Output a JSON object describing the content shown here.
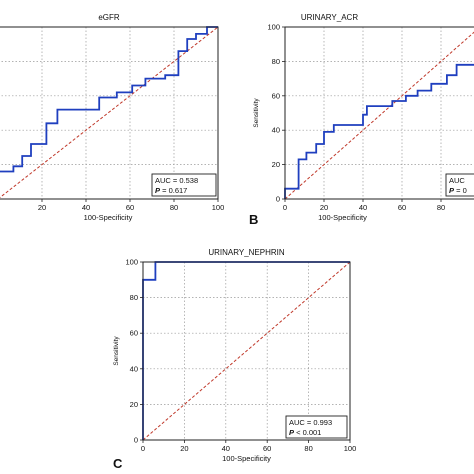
{
  "chart_data": [
    {
      "panel_letter": "",
      "type": "line",
      "title": "eGFR",
      "xlabel": "100-Specificity",
      "ylabel": "",
      "xlim": [
        0,
        100
      ],
      "ylim": [
        0,
        100
      ],
      "x_ticks": [
        "20",
        "40",
        "60",
        "80",
        "100"
      ],
      "y_ticks": [],
      "grid": true,
      "diagonal": true,
      "auc_label": "AUC = 0.538",
      "p_label": "P = 0.617",
      "roc": [
        [
          0,
          0
        ],
        [
          0,
          16
        ],
        [
          7,
          16
        ],
        [
          7,
          19
        ],
        [
          11,
          19
        ],
        [
          11,
          25
        ],
        [
          15,
          25
        ],
        [
          15,
          32
        ],
        [
          22,
          32
        ],
        [
          22,
          44
        ],
        [
          27,
          44
        ],
        [
          27,
          52
        ],
        [
          46,
          52
        ],
        [
          46,
          59
        ],
        [
          54,
          59
        ],
        [
          54,
          62
        ],
        [
          61,
          62
        ],
        [
          61,
          66
        ],
        [
          67,
          66
        ],
        [
          67,
          70
        ],
        [
          76,
          70
        ],
        [
          76,
          72
        ],
        [
          82,
          72
        ],
        [
          82,
          86
        ],
        [
          86,
          86
        ],
        [
          86,
          93
        ],
        [
          90,
          93
        ],
        [
          90,
          96
        ],
        [
          95,
          96
        ],
        [
          95,
          100
        ],
        [
          100,
          100
        ]
      ],
      "colors": {
        "roc": "#1f3fbf",
        "diagonal": "#c0392b"
      }
    },
    {
      "panel_letter": "B",
      "type": "line",
      "title": "URINARY_ACR",
      "xlabel": "100-Specificity",
      "ylabel": "Sensitivity",
      "xlim": [
        0,
        100
      ],
      "ylim": [
        0,
        100
      ],
      "x_ticks": [
        "0",
        "20",
        "40",
        "60",
        "80"
      ],
      "y_ticks": [
        "0",
        "20",
        "40",
        "60",
        "80",
        "100"
      ],
      "grid": true,
      "diagonal": true,
      "auc_label": "AUC",
      "p_label": "P = 0",
      "roc": [
        [
          0,
          0
        ],
        [
          0,
          6
        ],
        [
          7,
          6
        ],
        [
          7,
          23
        ],
        [
          11,
          23
        ],
        [
          11,
          27
        ],
        [
          16,
          27
        ],
        [
          16,
          32
        ],
        [
          20,
          32
        ],
        [
          20,
          39
        ],
        [
          25,
          39
        ],
        [
          25,
          43
        ],
        [
          40,
          43
        ],
        [
          40,
          49
        ],
        [
          42,
          49
        ],
        [
          42,
          54
        ],
        [
          55,
          54
        ],
        [
          55,
          57
        ],
        [
          62,
          57
        ],
        [
          62,
          60
        ],
        [
          68,
          60
        ],
        [
          68,
          63
        ],
        [
          75,
          63
        ],
        [
          75,
          67
        ],
        [
          83,
          67
        ],
        [
          83,
          72
        ],
        [
          88,
          72
        ],
        [
          88,
          78
        ],
        [
          100,
          78
        ]
      ],
      "colors": {
        "roc": "#1f3fbf",
        "diagonal": "#c0392b"
      }
    },
    {
      "panel_letter": "C",
      "type": "line",
      "title": "URINARY_NEPHRIN",
      "xlabel": "100-Specificity",
      "ylabel": "Sensitivity",
      "xlim": [
        0,
        100
      ],
      "ylim": [
        0,
        100
      ],
      "x_ticks": [
        "0",
        "20",
        "40",
        "60",
        "80",
        "100"
      ],
      "y_ticks": [
        "0",
        "20",
        "40",
        "60",
        "80",
        "100"
      ],
      "grid": true,
      "diagonal": true,
      "auc_label": "AUC = 0.993",
      "p_label": "P < 0.001",
      "roc": [
        [
          0,
          0
        ],
        [
          0,
          90
        ],
        [
          6,
          90
        ],
        [
          6,
          100
        ],
        [
          100,
          100
        ]
      ],
      "colors": {
        "roc": "#1f3fbf",
        "diagonal": "#c0392b"
      }
    }
  ]
}
